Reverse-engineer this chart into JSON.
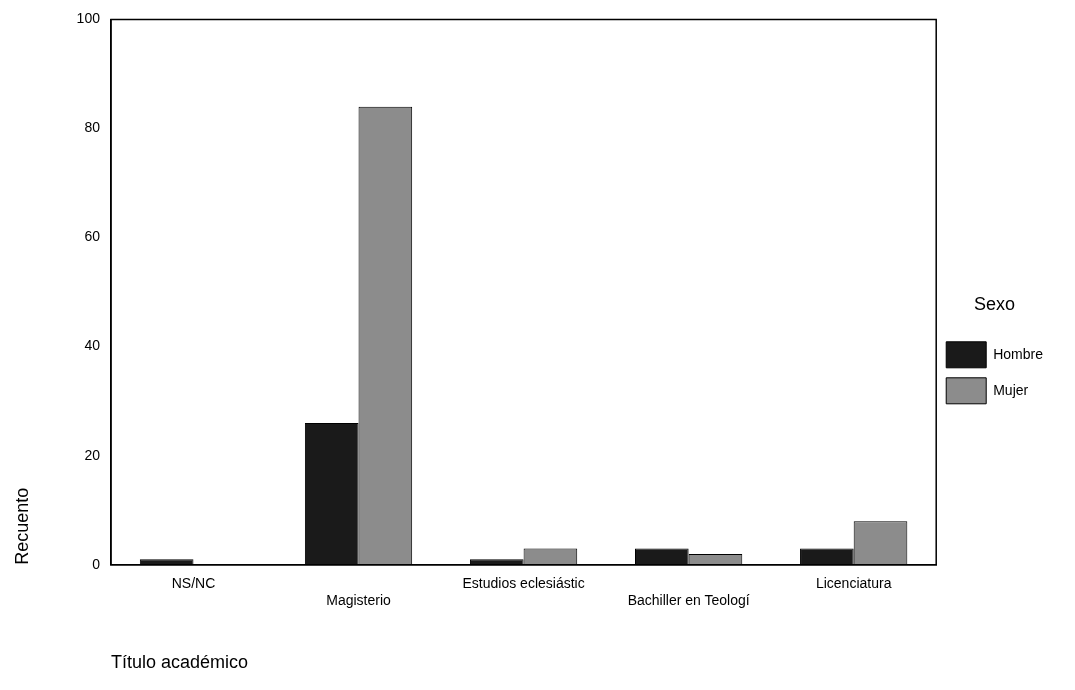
{
  "chart_data": {
    "type": "bar",
    "xlabel": "Título académico",
    "ylabel": "Recuento",
    "legend_title": "Sexo",
    "legend": "right",
    "grid": false,
    "categories": [
      "NS/NC",
      "Magisterio",
      "Estudios eclesiástic",
      "Bachiller en Teologí",
      "Licenciatura"
    ],
    "series": [
      {
        "name": "Hombre",
        "color": "#1a1a1a",
        "values": [
          1,
          26,
          1,
          3,
          3
        ]
      },
      {
        "name": "Mujer",
        "color": "#8c8c8c",
        "values": [
          0,
          84,
          3,
          2,
          8
        ]
      }
    ],
    "ylim": [
      0,
      100
    ],
    "yticks": [
      0,
      20,
      40,
      60,
      80,
      100
    ]
  }
}
